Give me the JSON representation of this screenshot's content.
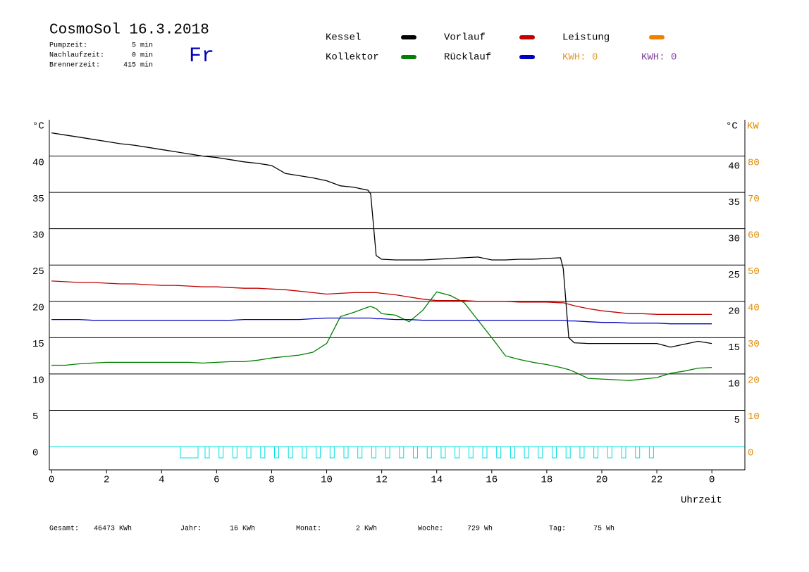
{
  "header": {
    "title": "CosmoSol 16.3.2018",
    "info": [
      [
        "Pumpzeit:",
        "5 min"
      ],
      [
        "Nachlaufzeit:",
        "0 min"
      ],
      [
        "Brennerzeit:",
        "415 min"
      ]
    ],
    "day": "Fr"
  },
  "chart_data": {
    "type": "line",
    "x": [
      0,
      0.5,
      1,
      1.5,
      2,
      2.5,
      3,
      3.5,
      4,
      4.5,
      5,
      5.5,
      6,
      6.5,
      7,
      7.5,
      8,
      8.5,
      9,
      9.5,
      10,
      10.5,
      11,
      11.5,
      11.6,
      11.8,
      12,
      12.5,
      13,
      13.5,
      14,
      14.5,
      15,
      15.5,
      16,
      16.5,
      17,
      17.5,
      18,
      18.5,
      18.6,
      18.8,
      19,
      19.5,
      20,
      20.5,
      21,
      21.5,
      22,
      22.5,
      23,
      23.5,
      24
    ],
    "xlim": [
      -0.08,
      25.2
    ],
    "xticks": [
      0,
      2,
      4,
      6,
      8,
      10,
      12,
      14,
      16,
      18,
      20,
      22,
      {
        "value": 24,
        "label": "0"
      }
    ],
    "xlabel": "Uhrzeit",
    "ylabel": "°C",
    "ylim": [
      -3.2,
      45
    ],
    "yticks": [
      0,
      5,
      10,
      15,
      20,
      25,
      30,
      35,
      40
    ],
    "y2label": "KW",
    "y2lim": [
      -6.4,
      90
    ],
    "y2ticks": [
      0,
      10,
      20,
      30,
      40,
      50,
      60,
      70,
      80
    ],
    "y2color": "#e08a00",
    "grid": true,
    "series": [
      {
        "name": "Kessel",
        "color": "#000000",
        "values": [
          43.2,
          42.9,
          42.6,
          42.3,
          42.0,
          41.7,
          41.5,
          41.2,
          40.9,
          40.6,
          40.3,
          40.0,
          39.8,
          39.5,
          39.2,
          39.0,
          38.7,
          37.6,
          37.3,
          37.0,
          36.6,
          35.9,
          35.7,
          35.3,
          34.8,
          26.3,
          25.8,
          25.7,
          25.7,
          25.7,
          25.8,
          25.9,
          26.0,
          26.1,
          25.7,
          25.7,
          25.8,
          25.8,
          25.9,
          26.0,
          24.5,
          15.0,
          14.3,
          14.2,
          14.2,
          14.2,
          14.2,
          14.2,
          14.2,
          13.7,
          14.1,
          14.5,
          14.2
        ]
      },
      {
        "name": "Kollektor",
        "color": "#008000",
        "values": [
          11.2,
          11.2,
          11.4,
          11.5,
          11.6,
          11.6,
          11.6,
          11.6,
          11.6,
          11.6,
          11.6,
          11.5,
          11.6,
          11.7,
          11.7,
          11.9,
          12.2,
          12.4,
          12.6,
          13.0,
          14.2,
          17.9,
          18.5,
          19.2,
          19.3,
          19.0,
          18.3,
          18.1,
          17.2,
          18.8,
          21.3,
          20.8,
          19.8,
          17.4,
          15.0,
          12.5,
          12.0,
          11.6,
          11.3,
          10.9,
          10.8,
          10.6,
          10.3,
          9.4,
          9.3,
          9.2,
          9.1,
          9.3,
          9.5,
          10.1,
          10.4,
          10.8,
          10.9
        ]
      },
      {
        "name": "Vorlauf",
        "color": "#c00000",
        "values": [
          22.8,
          22.7,
          22.6,
          22.6,
          22.5,
          22.4,
          22.4,
          22.3,
          22.2,
          22.2,
          22.1,
          22.0,
          22.0,
          21.9,
          21.8,
          21.8,
          21.7,
          21.6,
          21.4,
          21.2,
          21.0,
          21.1,
          21.2,
          21.2,
          21.2,
          21.2,
          21.1,
          20.9,
          20.6,
          20.3,
          20.1,
          20.1,
          20.1,
          20.0,
          20.0,
          20.0,
          19.9,
          19.9,
          19.9,
          19.8,
          19.8,
          19.6,
          19.4,
          19.0,
          18.7,
          18.5,
          18.3,
          18.3,
          18.2,
          18.2,
          18.2,
          18.2,
          18.2
        ]
      },
      {
        "name": "Rücklauf",
        "color": "#0000c0",
        "values": [
          17.5,
          17.5,
          17.5,
          17.4,
          17.4,
          17.4,
          17.4,
          17.4,
          17.4,
          17.4,
          17.4,
          17.4,
          17.4,
          17.4,
          17.5,
          17.5,
          17.5,
          17.5,
          17.5,
          17.6,
          17.7,
          17.7,
          17.7,
          17.7,
          17.7,
          17.6,
          17.6,
          17.5,
          17.5,
          17.4,
          17.4,
          17.4,
          17.4,
          17.4,
          17.4,
          17.4,
          17.4,
          17.4,
          17.4,
          17.4,
          17.4,
          17.3,
          17.3,
          17.2,
          17.1,
          17.1,
          17.0,
          17.0,
          17.0,
          16.9,
          16.9,
          16.9,
          16.9
        ]
      }
    ],
    "extra_legend": [
      {
        "name": "Leistung",
        "color": "#f08000"
      }
    ],
    "kwh": [
      {
        "text": "KWH: 0",
        "color": "#e09a30"
      },
      {
        "text": "KWH: 0",
        "color": "#8040a0"
      }
    ]
  },
  "footer": [
    [
      "Gesamt:",
      "46473 KWh"
    ],
    [
      "Jahr:",
      "16 KWh"
    ],
    [
      "Monat:",
      "2 KWh"
    ],
    [
      "Woche:",
      "729 Wh"
    ],
    [
      "Tag:",
      "75 Wh"
    ]
  ]
}
